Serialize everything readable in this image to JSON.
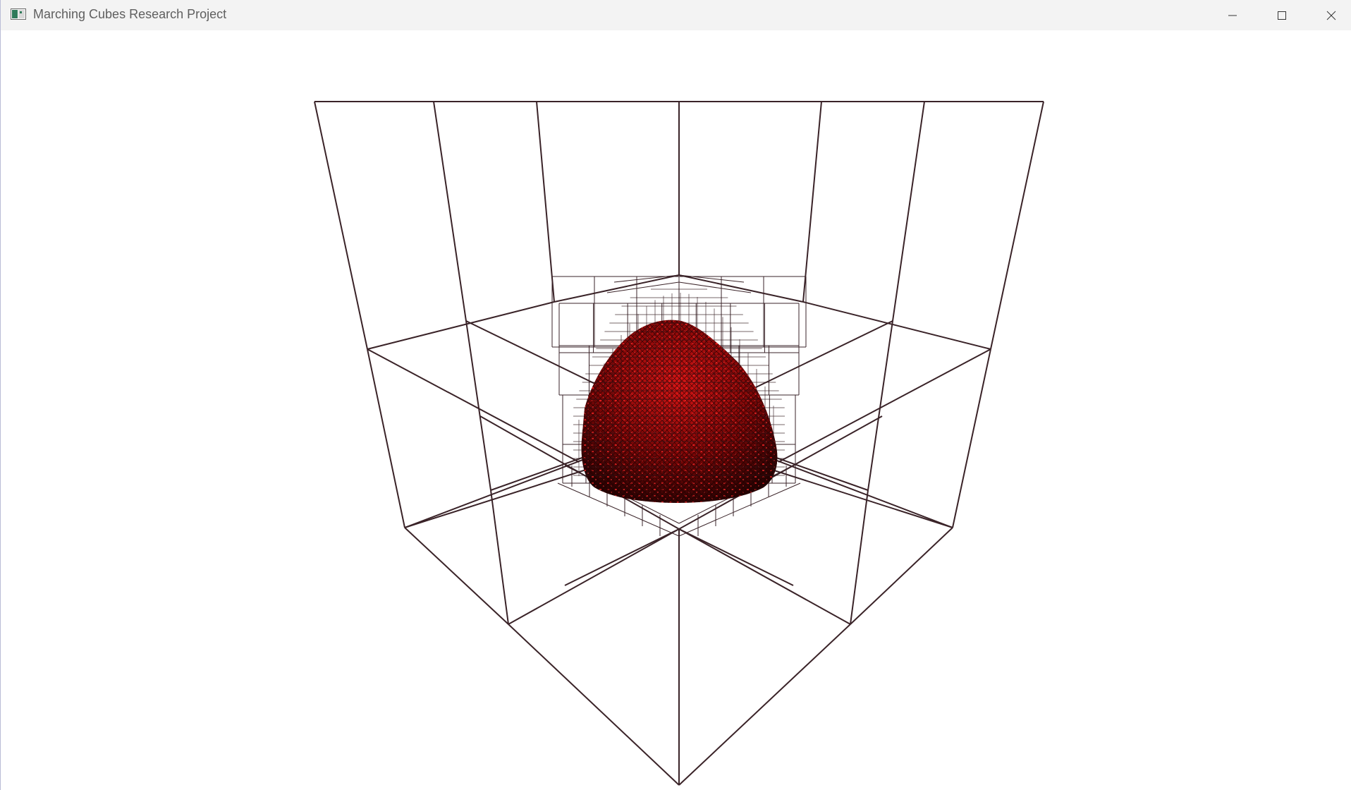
{
  "window": {
    "title": "Marching Cubes Research Project"
  },
  "icons": {
    "app": "app-window-icon",
    "minimize": "minimize-icon",
    "maximize": "maximize-icon",
    "close": "close-icon"
  },
  "colors": {
    "wireframe": "#3a2328",
    "surface": "#8e0a0a",
    "surface_highlight": "#e01515",
    "background": "#ffffff",
    "titlebar": "#f3f3f3"
  }
}
